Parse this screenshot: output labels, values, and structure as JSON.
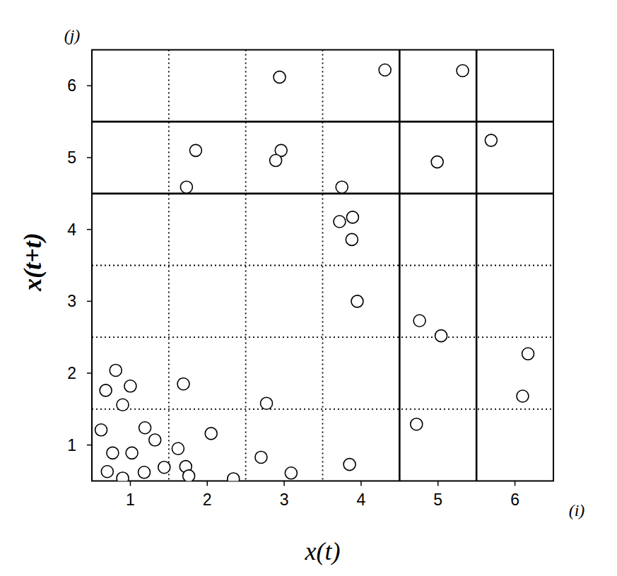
{
  "chart_data": {
    "type": "scatter",
    "x_label": "x(t)",
    "y_label": "x(t+t)",
    "annotations": [
      "(j)",
      "(i)"
    ],
    "x": [
      2.94,
      4.31,
      5.32,
      5.69,
      4.99,
      1.85,
      2.96,
      2.89,
      1.73,
      3.75,
      3.72,
      3.89,
      3.88,
      3.95,
      4.76,
      5.04,
      6.17,
      6.1,
      4.72,
      3.85,
      3.09,
      2.77,
      2.7,
      2.34,
      2.05,
      1.69,
      1.62,
      1.72,
      1.76,
      1.44,
      1.18,
      1.32,
      1.19,
      1.02,
      0.77,
      0.7,
      0.9,
      0.62,
      0.9,
      0.68,
      0.81,
      1.0
    ],
    "values": [
      6.12,
      6.22,
      6.21,
      5.24,
      4.94,
      5.1,
      5.1,
      4.96,
      4.59,
      4.59,
      4.11,
      4.17,
      3.86,
      3.0,
      2.73,
      2.52,
      2.27,
      1.68,
      1.29,
      0.73,
      0.61,
      1.58,
      0.83,
      0.53,
      1.16,
      1.85,
      0.95,
      0.7,
      0.57,
      0.69,
      0.62,
      1.07,
      1.24,
      0.89,
      0.89,
      0.63,
      0.54,
      1.21,
      1.56,
      1.76,
      2.04,
      1.82
    ],
    "marker": "open-circle",
    "color": "#000000",
    "xlim": [
      0.5,
      6.5
    ],
    "ylim": [
      0.5,
      6.5
    ],
    "xticks": [
      1,
      2,
      3,
      4,
      5,
      6
    ],
    "yticks": [
      1,
      2,
      3,
      4,
      5,
      6
    ],
    "grid": true,
    "x_lines": [
      {
        "value": 1.5,
        "line_style": "dotted"
      },
      {
        "value": 2.5,
        "line_style": "dotted"
      },
      {
        "value": 3.5,
        "line_style": "dotted"
      },
      {
        "value": 4.5,
        "line_style": "solid"
      },
      {
        "value": 5.5,
        "line_style": "solid"
      }
    ],
    "y_lines": [
      {
        "value": 1.5,
        "line_style": "dotted"
      },
      {
        "value": 2.5,
        "line_style": "dotted"
      },
      {
        "value": 3.5,
        "line_style": "dotted"
      },
      {
        "value": 4.5,
        "line_style": "solid"
      },
      {
        "value": 5.5,
        "line_style": "solid"
      }
    ]
  }
}
